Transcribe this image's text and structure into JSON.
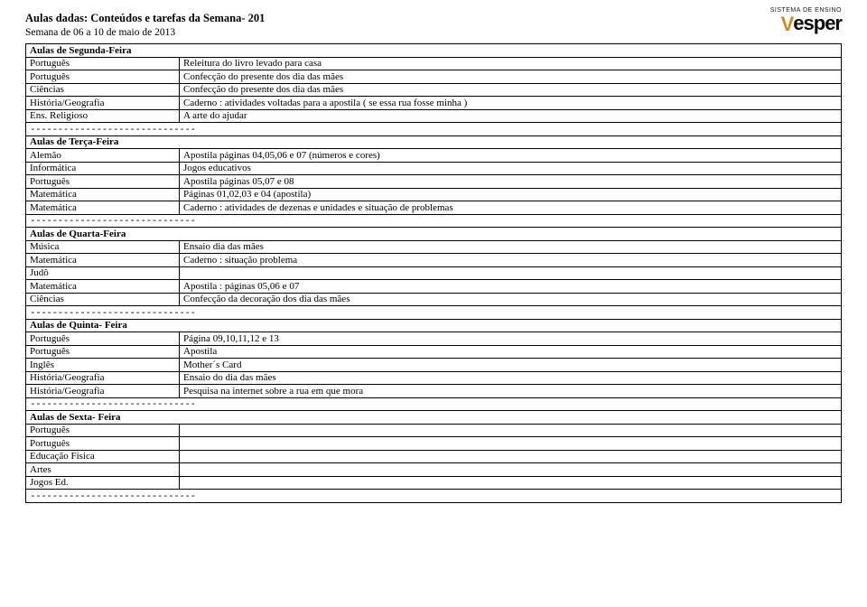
{
  "header": {
    "title": "Aulas dadas: Conteúdos e tarefas da Semana- 201",
    "subtitle": "Semana de 06 a 10 de maio de 2013"
  },
  "logo": {
    "top_text": "SISTEMA DE ENSINO",
    "brand_main": "Vesper",
    "accent_color": "#d38a1a"
  },
  "separator": "------------------------------",
  "sections": [
    {
      "title": "Aulas de Segunda-Feira",
      "rows": [
        {
          "subject": "Português",
          "content": "Releitura do livro levado para casa"
        },
        {
          "subject": "Português",
          "content": "Confecção do presente dos dia das mães"
        },
        {
          "subject": "Ciências",
          "content": "Confecção do presente dos dia das mães"
        },
        {
          "subject": "História/Geografia",
          "content": "Caderno : atividades voltadas para a apostila ( se essa rua fosse minha )"
        },
        {
          "subject": "Ens. Religioso",
          "content": "A arte do ajudar"
        }
      ]
    },
    {
      "title": "Aulas de Terça-Feira",
      "rows": [
        {
          "subject": "Alemão",
          "content": "Apostila páginas 04,05,06 e 07 (números e cores)"
        },
        {
          "subject": "Informática",
          "content": "Jogos educativos"
        },
        {
          "subject": "Português",
          "content": "Apostila páginas 05,07 e 08"
        },
        {
          "subject": "Matemática",
          "content": "Páginas 01,02,03 e 04 (apostila)"
        },
        {
          "subject": "Matemática",
          "content": "Caderno : atividades de dezenas e unidades e situação de problemas"
        }
      ]
    },
    {
      "title": "Aulas de Quarta-Feira",
      "rows": [
        {
          "subject": "Música",
          "content": "Ensaio dia das mães"
        },
        {
          "subject": "Matemática",
          "content": "Caderno : situação problema"
        },
        {
          "subject": "Judô",
          "content": ""
        },
        {
          "subject": "Matemática",
          "content": "Apostila : páginas 05,06 e 07"
        },
        {
          "subject": "Ciências",
          "content": "Confecção da decoração dos dia das mães"
        }
      ]
    },
    {
      "title": "Aulas de Quinta- Feira",
      "rows": [
        {
          "subject": "Português",
          "content": "Página 09,10,11,12 e 13"
        },
        {
          "subject": "Português",
          "content": "Apostila"
        },
        {
          "subject": "Inglês",
          "content": "Mother´s Card"
        },
        {
          "subject": "História/Geografia",
          "content": "Ensaio do dia das mães"
        },
        {
          "subject": "História/Geografia",
          "content": "Pesquisa na internet sobre a rua em que mora"
        }
      ]
    },
    {
      "title": "Aulas de Sexta- Feira",
      "rows": [
        {
          "subject": "Português",
          "content": ""
        },
        {
          "subject": "Português",
          "content": ""
        },
        {
          "subject": "Educação Física",
          "content": ""
        },
        {
          "subject": "Artes",
          "content": ""
        },
        {
          "subject": "Jogos Ed.",
          "content": ""
        }
      ]
    }
  ]
}
